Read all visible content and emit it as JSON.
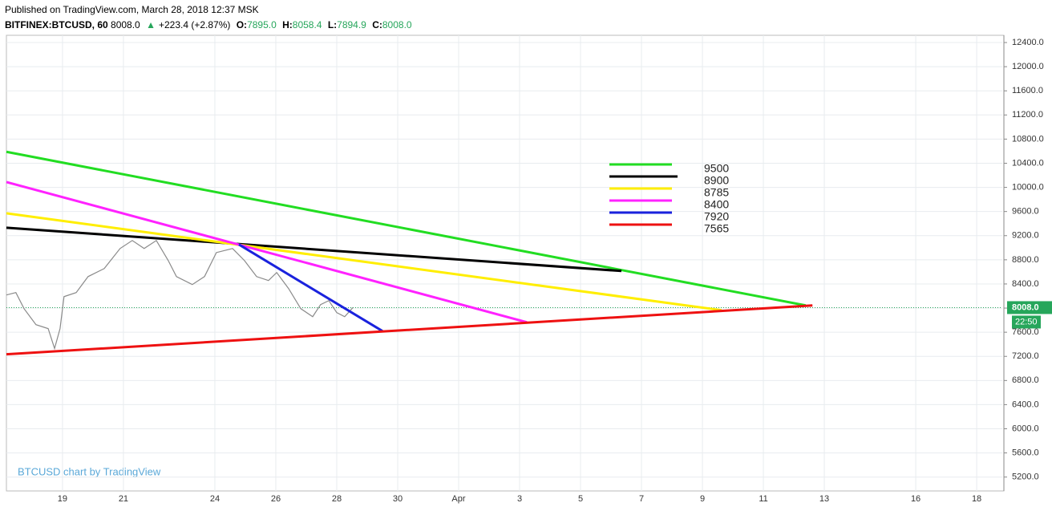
{
  "chart_data": {
    "type": "line",
    "subtitle": "Published on TradingView.com, March 28, 2018 12:37 MSK",
    "title": "BITFINEX:BTCUSD, 60",
    "quote": {
      "last": "8008.0",
      "change": "+223.4 (+2.87%)",
      "o": "O:",
      "open": "7895.0",
      "h": "H:",
      "high": "8058.4",
      "l": "L:",
      "low": "7894.9",
      "c": "C:",
      "close": "8008.0"
    },
    "watermark": "BTCUSD chart by TradingView",
    "x": [
      17.16,
      17.47,
      17.74,
      18.13,
      18.53,
      18.74,
      18.92,
      19.05,
      19.45,
      19.84,
      20.37,
      20.89,
      21.29,
      21.68,
      22.08,
      22.47,
      22.74,
      23.26,
      23.66,
      24.05,
      24.58,
      24.97,
      25.37,
      25.76,
      26.03,
      26.42,
      26.82,
      27.21,
      27.47,
      27.74,
      28.0,
      28.26,
      28.53
    ],
    "values": [
      8217,
      8257,
      7990,
      7725,
      7660,
      7330,
      7660,
      8190,
      8257,
      8522,
      8655,
      8987,
      9120,
      8987,
      9120,
      8788,
      8522,
      8390,
      8522,
      8920,
      8987,
      8788,
      8522,
      8456,
      8589,
      8323,
      7990,
      7858,
      8058,
      8124,
      7925,
      7858,
      8008
    ],
    "color": "#8a8a8a",
    "last_price": {
      "value": 8008,
      "label": "8008.0"
    },
    "countdown": "22:50",
    "series": [
      {
        "name": "9500",
        "color": "#22dd22",
        "x": [
          17.16,
          43.39
        ],
        "values": [
          10589,
          8044
        ]
      },
      {
        "name": "8900",
        "color": "#000000",
        "x": [
          17.16,
          37.34
        ],
        "values": [
          9332,
          8615
        ]
      },
      {
        "name": "8785",
        "color": "#ffee00",
        "x": [
          17.16,
          40.63
        ],
        "values": [
          9571,
          7964
        ]
      },
      {
        "name": "8400",
        "color": "#ff22ff",
        "x": [
          17.16,
          34.24
        ],
        "values": [
          10089,
          7765
        ]
      },
      {
        "name": "7920",
        "color": "#1a22dd",
        "x": [
          24.79,
          29.5
        ],
        "values": [
          9053,
          7619
        ]
      },
      {
        "name": "7565",
        "color": "#ee1111",
        "x": [
          17.16,
          43.61
        ],
        "values": [
          7234,
          8044
        ]
      }
    ],
    "xlim": [
      17.16,
      49.84
    ],
    "xticks": [
      19,
      21,
      24,
      26,
      28,
      30,
      {
        "value": 32,
        "label": "Apr"
      },
      {
        "value": 34,
        "label": "3"
      },
      {
        "value": 36,
        "label": "5"
      },
      {
        "value": 38,
        "label": "7"
      },
      {
        "value": 40,
        "label": "9"
      },
      {
        "value": 42,
        "label": "11"
      },
      {
        "value": 44,
        "label": "13"
      },
      {
        "value": 47,
        "label": "16"
      },
      {
        "value": 49,
        "label": "18"
      }
    ],
    "ylim": [
      4970,
      12520
    ],
    "yticks": [
      {
        "value": 5200,
        "label": "5200.0"
      },
      {
        "value": 5600,
        "label": "5600.0"
      },
      {
        "value": 6000,
        "label": "6000.0"
      },
      {
        "value": 6400,
        "label": "6400.0"
      },
      {
        "value": 6800,
        "label": "6800.0"
      },
      {
        "value": 7200,
        "label": "7200.0"
      },
      {
        "value": 7600,
        "label": "7600.0"
      },
      {
        "value": 8000,
        "label": "8000.0"
      },
      {
        "value": 8400,
        "label": "8400.0"
      },
      {
        "value": 8800,
        "label": "8800.0"
      },
      {
        "value": 9200,
        "label": "9200.0"
      },
      {
        "value": 9600,
        "label": "9600.0"
      },
      {
        "value": 10000,
        "label": "10000.0"
      },
      {
        "value": 10400,
        "label": "10400.0"
      },
      {
        "value": 10800,
        "label": "10800.0"
      },
      {
        "value": 11200,
        "label": "11200.0"
      },
      {
        "value": 11600,
        "label": "11600.0"
      },
      {
        "value": 12000,
        "label": "12000.0"
      },
      {
        "value": 12400,
        "label": "12400.0"
      }
    ],
    "grid": true
  }
}
